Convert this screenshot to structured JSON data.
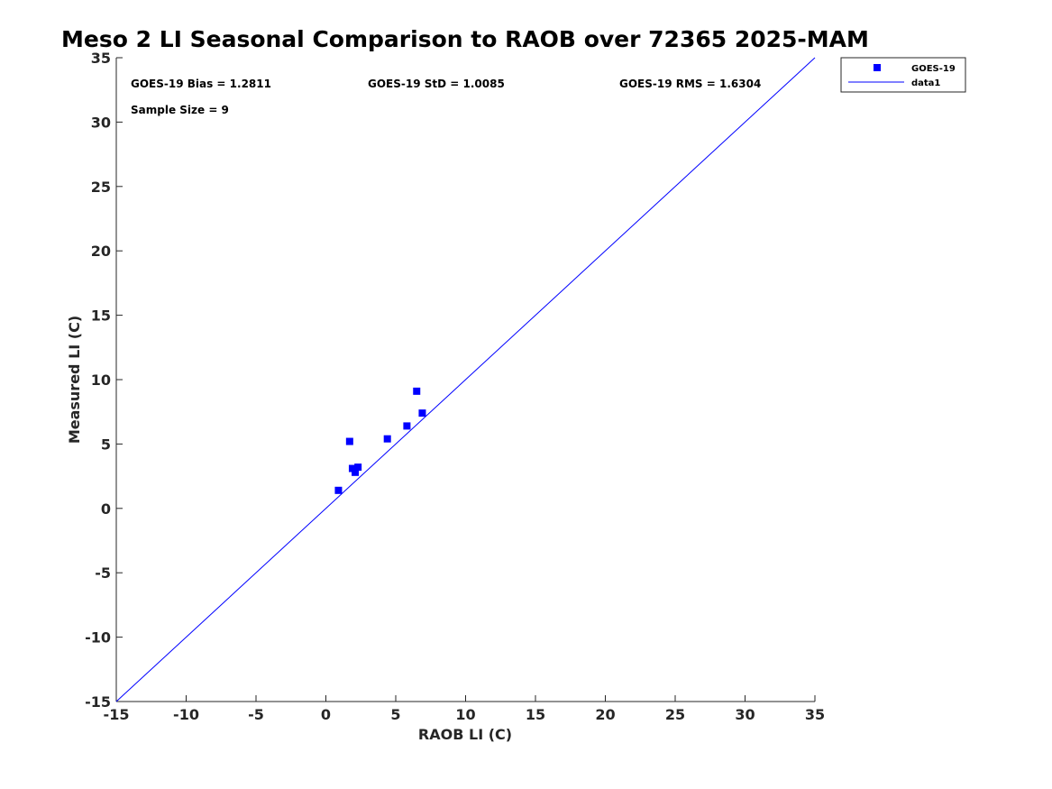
{
  "chart_data": {
    "type": "scatter",
    "title": "Meso 2 LI Seasonal Comparison to RAOB over 72365 2025-MAM",
    "xlabel": "RAOB LI (C)",
    "ylabel": "Measured LI (C)",
    "xlim": [
      -15,
      35
    ],
    "ylim": [
      -15,
      35
    ],
    "xticks": [
      -15,
      -10,
      -5,
      0,
      5,
      10,
      15,
      20,
      25,
      30,
      35
    ],
    "yticks": [
      -15,
      -10,
      -5,
      0,
      5,
      10,
      15,
      20,
      25,
      30,
      35
    ],
    "grid": false,
    "legend_position": "outside-top-right",
    "series": [
      {
        "name": "GOES-19",
        "kind": "markers",
        "color": "#0000ff",
        "x": [
          0.9,
          1.7,
          1.9,
          2.1,
          2.3,
          4.4,
          5.8,
          6.5,
          6.9
        ],
        "y": [
          1.4,
          5.2,
          3.1,
          2.8,
          3.2,
          5.4,
          6.4,
          9.1,
          7.4
        ]
      },
      {
        "name": "data1",
        "kind": "line",
        "color": "#0000ff",
        "x": [
          -15,
          35
        ],
        "y": [
          -15,
          35
        ]
      }
    ],
    "annotations": {
      "bias": "GOES-19 Bias = 1.2811",
      "std": "GOES-19 StD = 1.0085",
      "rms": "GOES-19 RMS = 1.6304",
      "sample": "Sample Size = 9"
    }
  }
}
